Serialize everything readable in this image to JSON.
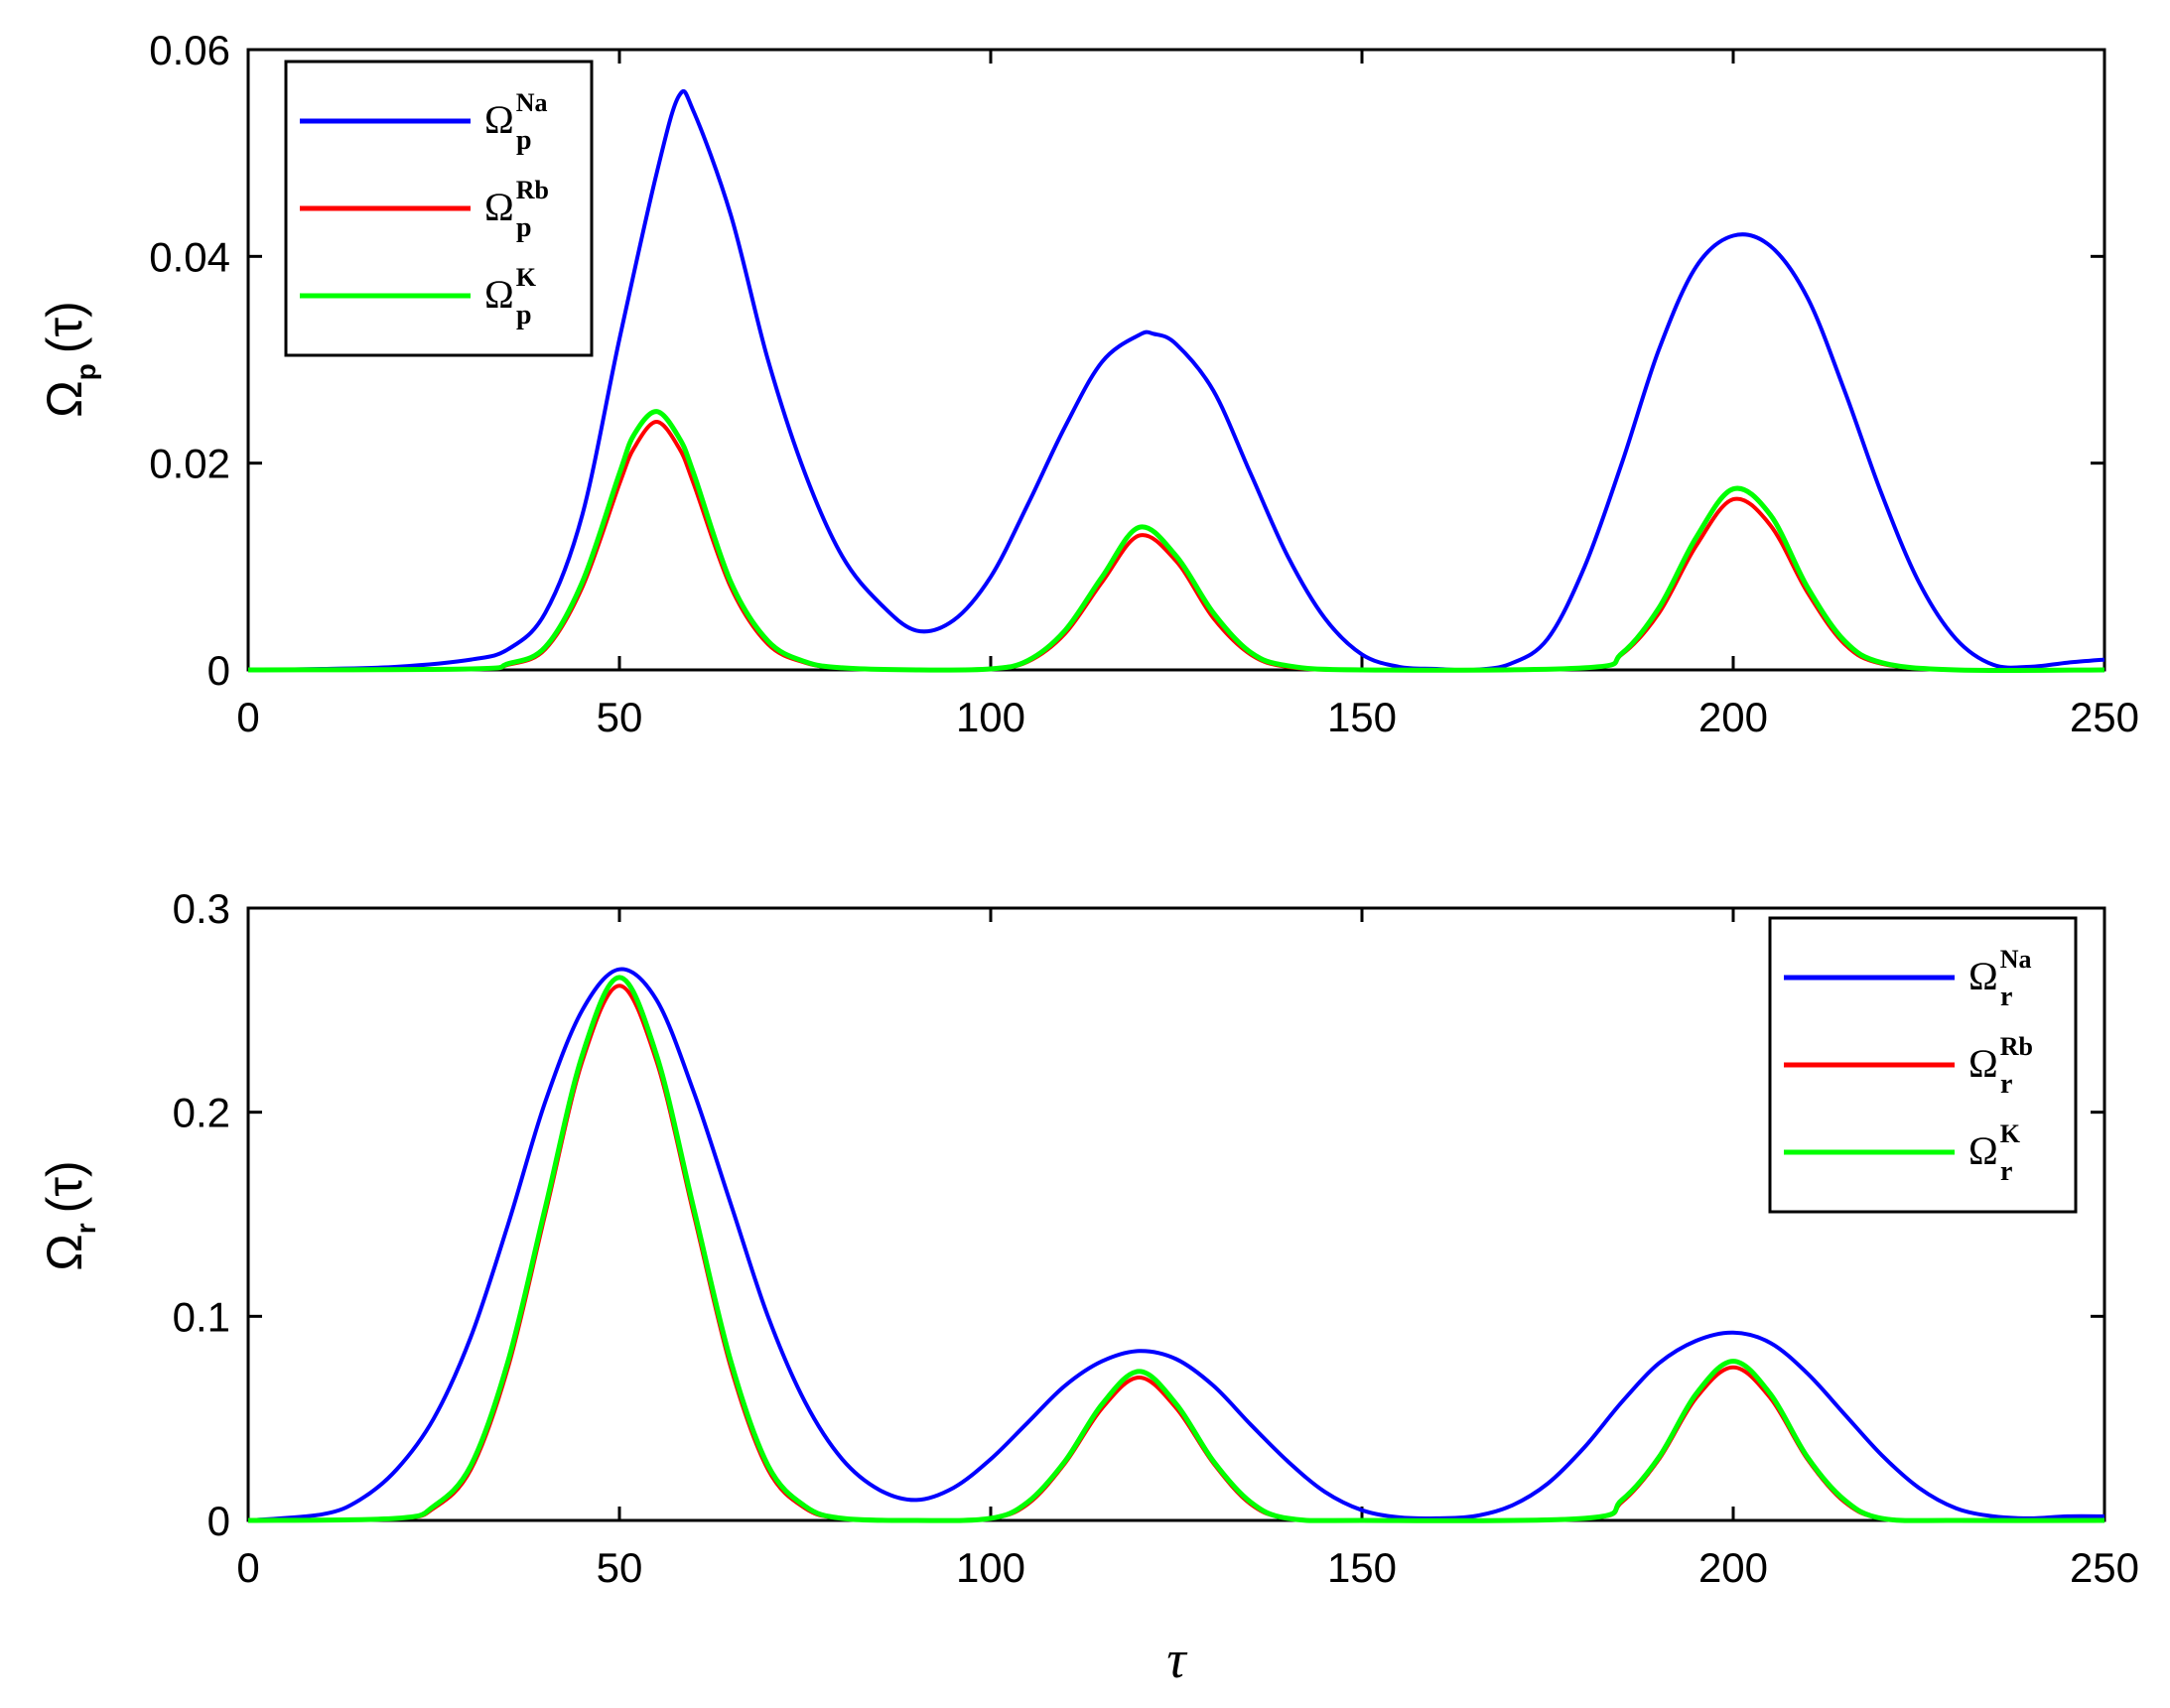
{
  "chart_data": [
    {
      "type": "line",
      "ylabel": {
        "symbol": "Ω",
        "sub": "p",
        "arg": "(τ)"
      },
      "xlabel": "",
      "xlim": [
        0,
        250
      ],
      "ylim": [
        0,
        0.06
      ],
      "xticks": [
        "0",
        "50",
        "100",
        "150",
        "200",
        "250"
      ],
      "yticks": [
        "0",
        "0.02",
        "0.04",
        "0.06"
      ],
      "legend_position": "top-left",
      "series": [
        {
          "name": "Ω_p^Na",
          "legend": {
            "symbol": "Ω",
            "sub": "p",
            "sup": "Na"
          },
          "color": "#0000ff",
          "x": [
            0,
            10,
            20,
            30,
            35,
            40,
            45,
            50,
            55,
            58,
            60,
            65,
            70,
            75,
            80,
            85,
            90,
            95,
            100,
            105,
            110,
            115,
            120,
            122,
            125,
            130,
            135,
            140,
            145,
            150,
            155,
            160,
            165,
            170,
            175,
            180,
            185,
            190,
            195,
            200,
            205,
            210,
            215,
            220,
            225,
            230,
            235,
            240,
            245,
            250
          ],
          "y": [
            0,
            0.0001,
            0.0003,
            0.001,
            0.002,
            0.0055,
            0.015,
            0.032,
            0.048,
            0.0555,
            0.054,
            0.044,
            0.03,
            0.019,
            0.011,
            0.0065,
            0.0038,
            0.0048,
            0.009,
            0.016,
            0.0235,
            0.0298,
            0.0324,
            0.0325,
            0.0315,
            0.027,
            0.019,
            0.011,
            0.005,
            0.0015,
            0.0003,
            0.0001,
            0,
            0.0006,
            0.003,
            0.01,
            0.02,
            0.031,
            0.039,
            0.042,
            0.041,
            0.036,
            0.027,
            0.017,
            0.0085,
            0.003,
            0.0005,
            0.0003,
            0.0007,
            0.001
          ]
        },
        {
          "name": "Ω_p^Rb",
          "legend": {
            "symbol": "Ω",
            "sub": "p",
            "sup": "Rb"
          },
          "color": "#ff0000",
          "x": [
            0,
            30,
            35,
            40,
            45,
            50,
            52,
            55,
            58,
            60,
            65,
            70,
            75,
            80,
            90,
            100,
            105,
            110,
            115,
            120,
            125,
            130,
            135,
            140,
            150,
            180,
            185,
            190,
            195,
            200,
            205,
            210,
            215,
            220,
            230,
            250
          ],
          "y": [
            0,
            0.0001,
            0.0005,
            0.002,
            0.008,
            0.018,
            0.0215,
            0.024,
            0.0215,
            0.018,
            0.008,
            0.0025,
            0.0007,
            0.0002,
            0,
            0.0001,
            0.0008,
            0.0035,
            0.0085,
            0.013,
            0.0105,
            0.005,
            0.0015,
            0.0003,
            0,
            0.0002,
            0.0015,
            0.0055,
            0.012,
            0.0165,
            0.014,
            0.0075,
            0.0025,
            0.0006,
            0,
            0
          ]
        },
        {
          "name": "Ω_p^K",
          "legend": {
            "symbol": "Ω",
            "sub": "p",
            "sup": "K"
          },
          "color": "#00ff00",
          "x": [
            0,
            30,
            35,
            40,
            45,
            50,
            52,
            55,
            58,
            60,
            65,
            70,
            75,
            80,
            90,
            100,
            105,
            110,
            115,
            120,
            125,
            130,
            135,
            140,
            150,
            180,
            185,
            190,
            195,
            200,
            205,
            210,
            215,
            220,
            230,
            250
          ],
          "y": [
            0,
            0.0001,
            0.0006,
            0.0022,
            0.0085,
            0.019,
            0.0228,
            0.025,
            0.0225,
            0.019,
            0.0085,
            0.0028,
            0.0008,
            0.0002,
            0,
            0.0001,
            0.0009,
            0.0038,
            0.009,
            0.0138,
            0.011,
            0.0055,
            0.0017,
            0.0004,
            0,
            0.0002,
            0.0016,
            0.006,
            0.0128,
            0.0175,
            0.015,
            0.008,
            0.0028,
            0.0007,
            0,
            0
          ]
        }
      ]
    },
    {
      "type": "line",
      "ylabel": {
        "symbol": "Ω",
        "sub": "r",
        "arg": "(τ)"
      },
      "xlabel": "τ",
      "xlim": [
        0,
        250
      ],
      "ylim": [
        0,
        0.3
      ],
      "xticks": [
        "0",
        "50",
        "100",
        "150",
        "200",
        "250"
      ],
      "yticks": [
        "0",
        "0.1",
        "0.2",
        "0.3"
      ],
      "legend_position": "top-right",
      "series": [
        {
          "name": "Ω_r^Na",
          "legend": {
            "symbol": "Ω",
            "sub": "r",
            "sup": "Na"
          },
          "color": "#0000ff",
          "x": [
            0,
            10,
            15,
            20,
            25,
            30,
            35,
            40,
            45,
            50,
            55,
            60,
            65,
            70,
            75,
            80,
            85,
            90,
            95,
            100,
            105,
            110,
            115,
            120,
            125,
            130,
            135,
            140,
            145,
            150,
            155,
            160,
            165,
            170,
            175,
            180,
            185,
            190,
            195,
            200,
            205,
            210,
            215,
            220,
            225,
            230,
            235,
            240,
            245,
            250
          ],
          "y": [
            0,
            0.003,
            0.01,
            0.025,
            0.05,
            0.09,
            0.145,
            0.205,
            0.25,
            0.27,
            0.255,
            0.21,
            0.155,
            0.1,
            0.058,
            0.03,
            0.015,
            0.01,
            0.016,
            0.03,
            0.048,
            0.066,
            0.078,
            0.083,
            0.079,
            0.066,
            0.047,
            0.029,
            0.014,
            0.005,
            0.0015,
            0.001,
            0.002,
            0.007,
            0.018,
            0.036,
            0.058,
            0.077,
            0.088,
            0.092,
            0.087,
            0.072,
            0.052,
            0.032,
            0.016,
            0.006,
            0.002,
            0.001,
            0.002,
            0.002
          ]
        },
        {
          "name": "Ω_r^Rb",
          "legend": {
            "symbol": "Ω",
            "sub": "r",
            "sup": "Rb"
          },
          "color": "#ff0000",
          "x": [
            0,
            20,
            25,
            30,
            35,
            40,
            45,
            50,
            55,
            60,
            65,
            70,
            75,
            80,
            90,
            100,
            105,
            110,
            115,
            120,
            125,
            130,
            135,
            140,
            150,
            180,
            185,
            190,
            195,
            200,
            205,
            210,
            215,
            220,
            230,
            250
          ],
          "y": [
            0,
            0.001,
            0.006,
            0.025,
            0.075,
            0.15,
            0.225,
            0.262,
            0.225,
            0.15,
            0.075,
            0.025,
            0.006,
            0.001,
            0,
            0.001,
            0.008,
            0.028,
            0.055,
            0.07,
            0.055,
            0.028,
            0.008,
            0.001,
            0,
            0.001,
            0.009,
            0.03,
            0.06,
            0.075,
            0.06,
            0.03,
            0.009,
            0.001,
            0,
            0
          ]
        },
        {
          "name": "Ω_r^K",
          "legend": {
            "symbol": "Ω",
            "sub": "r",
            "sup": "K"
          },
          "color": "#00ff00",
          "x": [
            0,
            20,
            25,
            30,
            35,
            40,
            45,
            50,
            55,
            60,
            65,
            70,
            75,
            80,
            90,
            100,
            105,
            110,
            115,
            120,
            125,
            130,
            135,
            140,
            150,
            180,
            185,
            190,
            195,
            200,
            205,
            210,
            215,
            220,
            230,
            250
          ],
          "y": [
            0,
            0.001,
            0.007,
            0.027,
            0.078,
            0.153,
            0.228,
            0.266,
            0.228,
            0.153,
            0.078,
            0.027,
            0.007,
            0.001,
            0,
            0.001,
            0.009,
            0.029,
            0.057,
            0.073,
            0.057,
            0.029,
            0.009,
            0.001,
            0,
            0.001,
            0.01,
            0.031,
            0.062,
            0.078,
            0.062,
            0.031,
            0.01,
            0.001,
            0,
            0
          ]
        }
      ]
    }
  ]
}
